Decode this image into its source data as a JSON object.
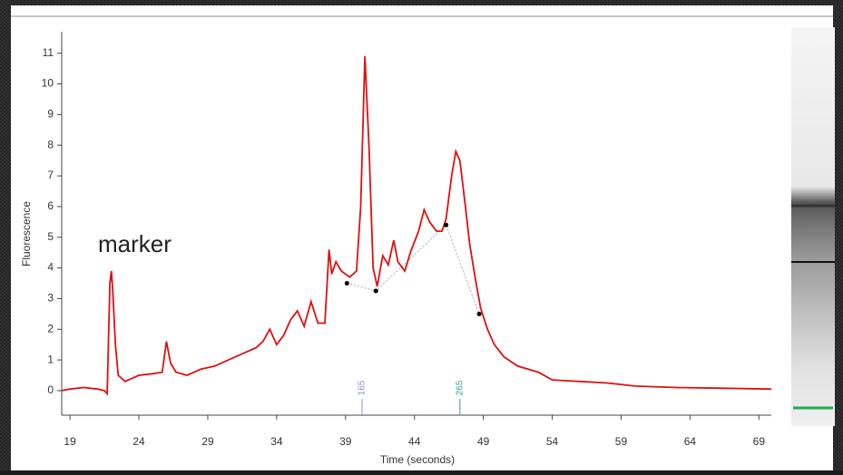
{
  "chart_data": {
    "type": "line",
    "xlabel": "Time (seconds)",
    "ylabel": "Fluorescence",
    "annotation": "marker",
    "xlim": [
      18.4,
      69.9
    ],
    "ylim": [
      -0.8,
      11.7
    ],
    "xticks": [
      19,
      24,
      29,
      34,
      39,
      44,
      49,
      54,
      59,
      64,
      69
    ],
    "yticks": [
      0,
      1,
      2,
      3,
      4,
      5,
      6,
      7,
      8,
      9,
      10,
      11
    ],
    "x": [
      18.4,
      19,
      20,
      21,
      21.5,
      21.7,
      21.9,
      22.0,
      22.1,
      22.3,
      22.5,
      23,
      23.5,
      24,
      25,
      25.7,
      26,
      26.3,
      26.7,
      27.5,
      28.5,
      29.5,
      30.5,
      31.5,
      32.5,
      33,
      33.5,
      34,
      34.5,
      35,
      35.5,
      36,
      36.5,
      37,
      37.5,
      37.8,
      38,
      38.3,
      38.7,
      39.3,
      39.8,
      40.1,
      40.4,
      40.7,
      41.0,
      41.3,
      41.7,
      42.1,
      42.5,
      42.8,
      43.3,
      43.7,
      44.3,
      44.7,
      45.1,
      45.6,
      46.0,
      46.3,
      46.7,
      47.0,
      47.3,
      47.7,
      48.0,
      48.4,
      48.8,
      49.3,
      49.8,
      50.5,
      51.5,
      53,
      54,
      56,
      58,
      60,
      63,
      66,
      69.9
    ],
    "series": [
      {
        "color": "#dd1111",
        "values": [
          0.0,
          0.05,
          0.1,
          0.05,
          0,
          -0.1,
          3.5,
          3.9,
          3.3,
          1.5,
          0.5,
          0.3,
          0.4,
          0.5,
          0.55,
          0.6,
          1.6,
          0.9,
          0.6,
          0.5,
          0.7,
          0.8,
          1.0,
          1.2,
          1.4,
          1.6,
          2.0,
          1.5,
          1.8,
          2.3,
          2.6,
          2.1,
          2.9,
          2.2,
          2.2,
          4.6,
          3.8,
          4.2,
          3.9,
          3.7,
          3.9,
          6.0,
          10.9,
          8.0,
          4.0,
          3.4,
          4.4,
          4.1,
          4.9,
          4.2,
          3.9,
          4.5,
          5.2,
          5.9,
          5.5,
          5.2,
          5.2,
          5.6,
          7.0,
          7.8,
          7.5,
          6.0,
          4.8,
          3.7,
          2.7,
          2.0,
          1.5,
          1.1,
          0.8,
          0.6,
          0.35,
          0.3,
          0.25,
          0.15,
          0.1,
          0.08,
          0.05
        ]
      }
    ],
    "points": {
      "color": "#000000",
      "x": [
        39.1,
        41.2,
        46.3,
        48.7
      ],
      "values": [
        3.5,
        3.25,
        5.4,
        2.5
      ]
    },
    "size_labels": [
      {
        "x": 40.2,
        "label": "165",
        "color": "#8a90d0"
      },
      {
        "x": 47.3,
        "label": "265",
        "color": "#3a9a9a"
      }
    ]
  }
}
